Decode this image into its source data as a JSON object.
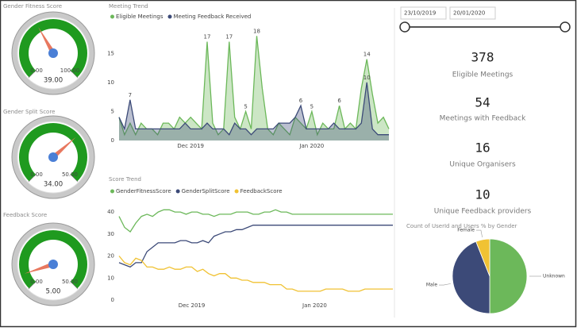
{
  "chart_data": [
    {
      "type": "gauge",
      "title": "Gender Fitness Score",
      "min": {
        "value": 0,
        "label": "0.00"
      },
      "max": {
        "value": 100,
        "label": "100.00"
      },
      "value": 39,
      "value_label": "39.00",
      "color": "#1f9a1f",
      "needle_color": "#e8785f"
    },
    {
      "type": "gauge",
      "title": "Gender Split Score",
      "min": {
        "value": 0,
        "label": "0.00"
      },
      "max": {
        "value": 50,
        "label": "50.00"
      },
      "value": 34,
      "value_label": "34.00",
      "color": "#1f9a1f",
      "needle_color": "#e8785f"
    },
    {
      "type": "gauge",
      "title": "Feedback Score",
      "min": {
        "value": 0,
        "label": "0.00"
      },
      "max": {
        "value": 50,
        "label": "50.00"
      },
      "value": 5,
      "value_label": "5.00",
      "color": "#1f9a1f",
      "needle_color": "#e8785f"
    },
    {
      "type": "area",
      "title": "Meeting Trend",
      "categories": [
        null,
        null,
        null,
        null,
        null,
        null,
        null,
        null,
        null,
        null,
        null,
        null,
        null,
        "Dec 2019",
        null,
        null,
        null,
        null,
        null,
        null,
        null,
        null,
        null,
        null,
        null,
        null,
        null,
        null,
        null,
        null,
        null,
        null,
        null,
        null,
        null,
        "Jan 2020",
        null,
        null,
        null,
        null,
        null,
        null,
        null,
        null,
        null,
        null,
        null,
        null,
        null,
        null
      ],
      "series": [
        {
          "name": "Eligible Meetings",
          "color": "#6cb85a",
          "values": [
            4,
            1,
            3,
            1,
            3,
            2,
            2,
            1,
            3,
            3,
            2,
            4,
            3,
            4,
            3,
            2,
            17,
            3,
            1,
            2,
            17,
            4,
            2,
            5,
            2,
            18,
            9,
            2,
            1,
            3,
            2,
            1,
            4,
            3,
            2,
            5,
            1,
            3,
            2,
            2,
            6,
            2,
            3,
            2,
            9,
            14,
            8,
            3,
            4,
            2
          ]
        },
        {
          "name": "Meeting Feedback Received",
          "color": "#3c4a78",
          "values": [
            4,
            2,
            7,
            2,
            2,
            2,
            2,
            2,
            2,
            2,
            2,
            2,
            3,
            2,
            2,
            2,
            3,
            2,
            2,
            2,
            1,
            3,
            2,
            2,
            1,
            2,
            2,
            2,
            2,
            3,
            3,
            3,
            4,
            6,
            2,
            2,
            2,
            2,
            2,
            3,
            2,
            2,
            2,
            2,
            3,
            10,
            2,
            1,
            1,
            1
          ]
        }
      ],
      "ylim": [
        0,
        19
      ],
      "yticks": [
        0,
        5,
        10,
        15
      ],
      "grid": false
    },
    {
      "type": "line",
      "title": "Score Trend",
      "categories": [
        null,
        null,
        null,
        null,
        null,
        null,
        null,
        null,
        null,
        null,
        null,
        null,
        null,
        "Dec 2019",
        null,
        null,
        null,
        null,
        null,
        null,
        null,
        null,
        null,
        null,
        null,
        null,
        null,
        null,
        null,
        null,
        null,
        null,
        null,
        null,
        null,
        "Jan 2020",
        null,
        null,
        null,
        null,
        null,
        null,
        null,
        null,
        null,
        null,
        null,
        null,
        null,
        null
      ],
      "series": [
        {
          "name": "GenderFitnessScore",
          "color": "#6cb85a",
          "values": [
            38,
            33,
            31,
            35,
            38,
            39,
            38,
            40,
            41,
            41,
            40,
            40,
            39,
            40,
            40,
            39,
            39,
            38,
            39,
            39,
            39,
            40,
            40,
            40,
            39,
            39,
            40,
            40,
            41,
            40,
            40,
            39,
            39,
            39,
            39,
            39,
            39,
            39,
            39,
            39,
            39,
            39,
            39,
            39,
            39,
            39,
            39,
            39,
            39,
            39
          ]
        },
        {
          "name": "GenderSplitScore",
          "color": "#3c4a78",
          "values": [
            17,
            16,
            15,
            17,
            17,
            22,
            24,
            26,
            26,
            26,
            26,
            27,
            27,
            26,
            26,
            27,
            26,
            29,
            30,
            31,
            31,
            32,
            32,
            33,
            34,
            34,
            34,
            34,
            34,
            34,
            34,
            34,
            34,
            34,
            34,
            34,
            34,
            34,
            34,
            34,
            34,
            34,
            34,
            34,
            34,
            34,
            34,
            34,
            34,
            34
          ]
        },
        {
          "name": "FeedbackScore",
          "color": "#f0c233",
          "values": [
            20,
            17,
            16,
            19,
            18,
            15,
            15,
            14,
            14,
            15,
            14,
            14,
            15,
            15,
            13,
            14,
            12,
            11,
            12,
            12,
            10,
            10,
            9,
            9,
            8,
            8,
            8,
            7,
            7,
            7,
            5,
            5,
            4,
            4,
            4,
            4,
            4,
            5,
            5,
            5,
            5,
            4,
            4,
            4,
            5,
            5,
            5,
            5,
            5,
            5
          ]
        }
      ],
      "ylim": [
        0,
        44
      ],
      "yticks": [
        0,
        10,
        20,
        30,
        40
      ],
      "grid": false
    },
    {
      "type": "pie",
      "title": "Count of UserId and Users % by Gender",
      "categories": [
        "Unknown",
        "Male",
        "Female"
      ],
      "values": [
        50,
        44,
        6
      ],
      "colors": [
        "#6cb85a",
        "#3c4a78",
        "#f0c233"
      ]
    }
  ],
  "slicer": {
    "start": "23/10/2019",
    "end": "20/01/2020"
  },
  "kpis": [
    {
      "value": 378,
      "label": "Eligible Meetings"
    },
    {
      "value": 54,
      "label": "Meetings with Feedback"
    },
    {
      "value": 16,
      "label": "Unique Organisers"
    },
    {
      "value": 10,
      "label": "Unique Feedback providers"
    }
  ]
}
